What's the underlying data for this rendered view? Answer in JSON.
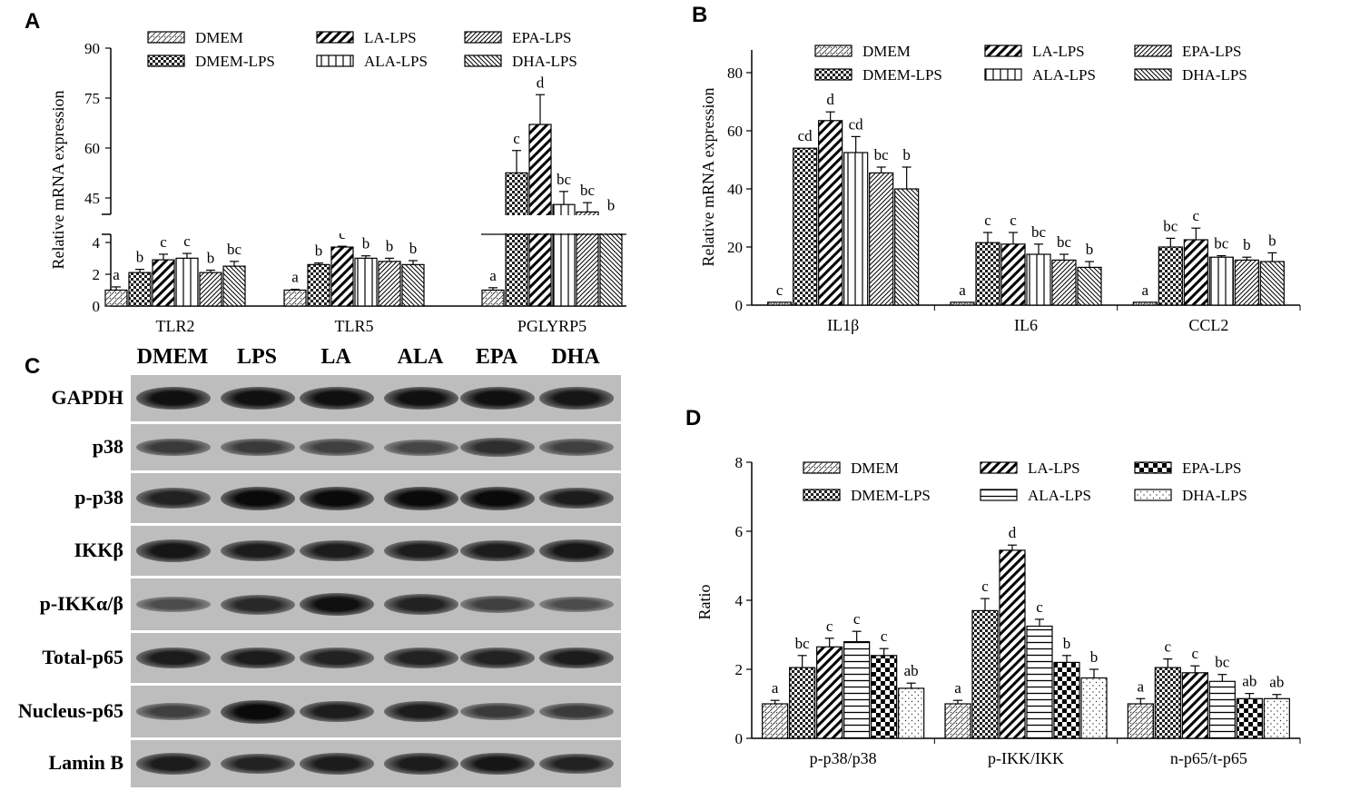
{
  "panels": {
    "A": {
      "letter": "A",
      "chart_data": {
        "type": "bar",
        "ylabel": "Relative  mRNA expression",
        "yticks_lower": [
          "0",
          "2",
          "4"
        ],
        "yticks_upper": [
          "45",
          "60",
          "75",
          "90"
        ],
        "axis_break": {
          "lower_ylim": [
            0,
            4.5
          ],
          "upper_ylim": [
            40,
            90
          ]
        },
        "categories": [
          "TLR2",
          "TLR5",
          "PGLYRP5"
        ],
        "legend": [
          "DMEM",
          "DMEM-LPS",
          "LA-LPS",
          "ALA-LPS",
          "EPA-LPS",
          "DHA-LPS"
        ],
        "series": [
          {
            "name": "DMEM",
            "values": [
              1.0,
              1.0,
              1.0
            ],
            "err": [
              0.2,
              0.05,
              0.15
            ],
            "letters": [
              "a",
              "a",
              "a"
            ]
          },
          {
            "name": "DMEM-LPS",
            "values": [
              2.1,
              2.6,
              56.5
            ],
            "err": [
              0.2,
              0.1,
              6.0
            ],
            "letters": [
              "b",
              "b",
              "c"
            ]
          },
          {
            "name": "LA-LPS",
            "values": [
              2.9,
              3.7,
              69.5
            ],
            "err": [
              0.35,
              0.05,
              8.0
            ],
            "letters": [
              "c",
              "c",
              "d"
            ]
          },
          {
            "name": "ALA-LPS",
            "values": [
              3.0,
              3.0,
              48.0
            ],
            "err": [
              0.3,
              0.15,
              3.5
            ],
            "letters": [
              "c",
              "b",
              "bc"
            ]
          },
          {
            "name": "EPA-LPS",
            "values": [
              2.1,
              2.8,
              46.0
            ],
            "err": [
              0.15,
              0.2,
              2.5
            ],
            "letters": [
              "b",
              "b",
              "bc"
            ]
          },
          {
            "name": "DHA-LPS",
            "values": [
              2.5,
              2.6,
              42.5
            ],
            "err": [
              0.3,
              0.25,
              2.0
            ],
            "letters": [
              "bc",
              "b",
              "b"
            ]
          }
        ]
      }
    },
    "B": {
      "letter": "B",
      "chart_data": {
        "type": "bar",
        "ylabel": "Relative mRNA expression",
        "ylim": [
          0,
          85
        ],
        "yticks": [
          "0",
          "20",
          "40",
          "60",
          "80"
        ],
        "categories": [
          "IL1β",
          "IL6",
          "CCL2"
        ],
        "legend": [
          "DMEM",
          "DMEM-LPS",
          "LA-LPS",
          "ALA-LPS",
          "EPA-LPS",
          "DHA-LPS"
        ],
        "series": [
          {
            "name": "DMEM",
            "values": [
              1.0,
              1.0,
              1.0
            ],
            "err": [
              0,
              0,
              0
            ],
            "letters": [
              "c",
              "a",
              "a"
            ]
          },
          {
            "name": "DMEM-LPS",
            "values": [
              54.0,
              21.5,
              20.0
            ],
            "err": [
              0,
              3.5,
              3.0
            ],
            "letters": [
              "cd",
              "c",
              "bc"
            ]
          },
          {
            "name": "LA-LPS",
            "values": [
              63.5,
              21.0,
              22.5
            ],
            "err": [
              3.0,
              4.0,
              4.0
            ],
            "letters": [
              "d",
              "c",
              "c"
            ]
          },
          {
            "name": "ALA-LPS",
            "values": [
              52.5,
              17.5,
              16.5
            ],
            "err": [
              5.5,
              3.5,
              0.5
            ],
            "letters": [
              "cd",
              "bc",
              "bc"
            ]
          },
          {
            "name": "EPA-LPS",
            "values": [
              45.5,
              15.5,
              15.5
            ],
            "err": [
              2.0,
              2.0,
              1.0
            ],
            "letters": [
              "bc",
              "bc",
              "b"
            ]
          },
          {
            "name": "DHA-LPS",
            "values": [
              40.0,
              13.0,
              15.0
            ],
            "err": [
              7.5,
              2.0,
              3.0
            ],
            "letters": [
              "b",
              "b",
              "b"
            ]
          }
        ]
      }
    },
    "C": {
      "letter": "C",
      "columns": [
        "DMEM",
        "LPS",
        "LA",
        "ALA",
        "EPA",
        "DHA"
      ],
      "rows": [
        {
          "label": "GAPDH",
          "intensity": [
            0.95,
            0.95,
            0.95,
            0.95,
            0.95,
            0.9
          ]
        },
        {
          "label": "p38",
          "intensity": [
            0.6,
            0.6,
            0.55,
            0.5,
            0.7,
            0.55
          ]
        },
        {
          "label": "p-p38",
          "intensity": [
            0.8,
            1.0,
            1.0,
            1.0,
            1.0,
            0.85
          ]
        },
        {
          "label": "IKKβ",
          "intensity": [
            0.9,
            0.85,
            0.85,
            0.85,
            0.85,
            0.9
          ]
        },
        {
          "label": "p-IKKα/β",
          "intensity": [
            0.45,
            0.75,
            0.95,
            0.8,
            0.55,
            0.45
          ]
        },
        {
          "label": "Total-p65",
          "intensity": [
            0.85,
            0.85,
            0.8,
            0.8,
            0.8,
            0.85
          ]
        },
        {
          "label": "Nucleus-p65",
          "intensity": [
            0.55,
            1.0,
            0.85,
            0.85,
            0.6,
            0.6
          ]
        },
        {
          "label": "Lamin B",
          "intensity": [
            0.85,
            0.8,
            0.85,
            0.85,
            0.9,
            0.8
          ]
        }
      ]
    },
    "D": {
      "letter": "D",
      "chart_data": {
        "type": "bar",
        "ylabel": "Ratio",
        "ylim": [
          0,
          8
        ],
        "yticks": [
          "0",
          "2",
          "4",
          "6",
          "8"
        ],
        "categories": [
          "p-p38/p38",
          "p-IKK/IKK",
          "n-p65/t-p65"
        ],
        "legend": [
          "DMEM",
          "DMEM-LPS",
          "LA-LPS",
          "ALA-LPS",
          "EPA-LPS",
          "DHA-LPS"
        ],
        "series": [
          {
            "name": "DMEM",
            "values": [
              1.0,
              1.0,
              1.0
            ],
            "err": [
              0.1,
              0.1,
              0.15
            ],
            "letters": [
              "a",
              "a",
              "a"
            ]
          },
          {
            "name": "DMEM-LPS",
            "values": [
              2.05,
              3.7,
              2.05
            ],
            "err": [
              0.35,
              0.35,
              0.25
            ],
            "letters": [
              "bc",
              "c",
              "c"
            ]
          },
          {
            "name": "LA-LPS",
            "values": [
              2.65,
              5.45,
              1.9
            ],
            "err": [
              0.25,
              0.15,
              0.2
            ],
            "letters": [
              "c",
              "d",
              "c"
            ]
          },
          {
            "name": "ALA-LPS",
            "values": [
              2.8,
              3.25,
              1.65
            ],
            "err": [
              0.3,
              0.2,
              0.2
            ],
            "letters": [
              "c",
              "c",
              "bc"
            ]
          },
          {
            "name": "EPA-LPS",
            "values": [
              2.4,
              2.2,
              1.15
            ],
            "err": [
              0.2,
              0.2,
              0.15
            ],
            "letters": [
              "c",
              "b",
              "ab"
            ]
          },
          {
            "name": "DHA-LPS",
            "values": [
              1.45,
              1.75,
              1.15
            ],
            "err": [
              0.15,
              0.25,
              0.12
            ],
            "letters": [
              "ab",
              "b",
              "ab"
            ]
          }
        ]
      }
    }
  }
}
